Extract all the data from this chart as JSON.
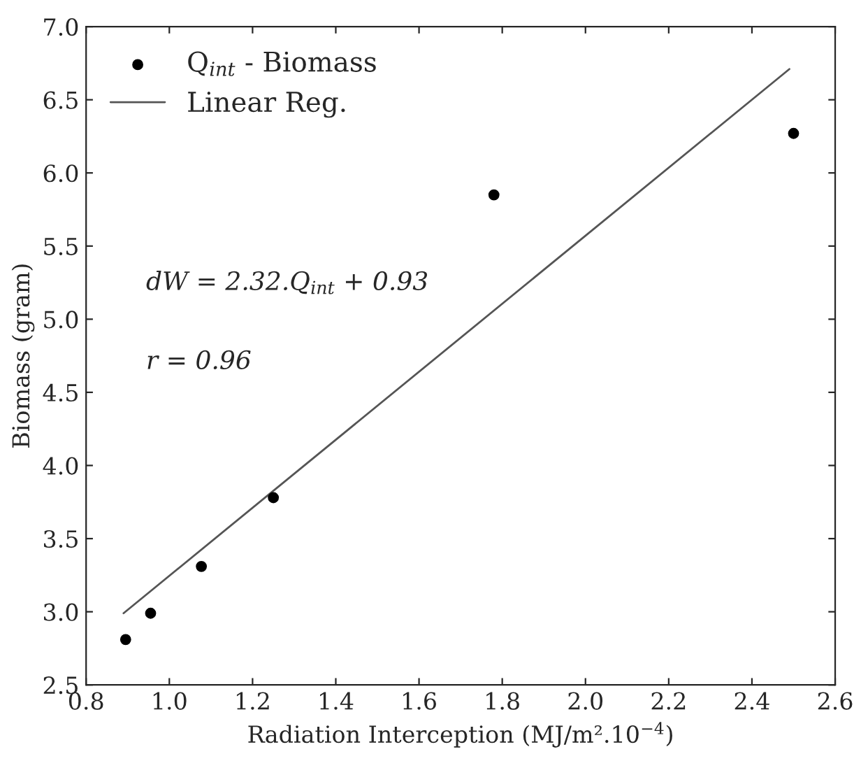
{
  "chart_data": {
    "type": "scatter",
    "xlabel": "Radiation Interception (MJ/m².10$^{−4}$)",
    "ylabel": "Biomass (gram)",
    "series": [
      {
        "name": "Q$_{int}$ - Biomass",
        "color": "#000000",
        "marker": "circle",
        "x": [
          0.895,
          0.955,
          1.077,
          1.25,
          1.78,
          2.5
        ],
        "values": [
          2.81,
          2.99,
          3.31,
          3.78,
          5.85,
          6.27
        ]
      },
      {
        "type": "line",
        "name": "Linear Reg.",
        "color": "#555555",
        "marker": "none",
        "x": [
          0.89,
          2.49
        ],
        "values": [
          2.99,
          6.71
        ]
      }
    ],
    "annotations": [
      "dW = 2.32.Q$_{int}$ + 0.93",
      "r = 0.96"
    ],
    "xlim": [
      0.8,
      2.6
    ],
    "xticks": [
      0.8,
      {
        "value": 1,
        "label": "1.0"
      },
      1.2,
      1.4,
      1.6,
      1.8,
      {
        "value": 2,
        "label": "2.0"
      },
      2.2,
      2.4,
      2.6
    ],
    "ylim": [
      2.5,
      7.0
    ],
    "yticks": [
      2.5,
      {
        "value": 3,
        "label": "3.0"
      },
      3.5,
      {
        "value": 4,
        "label": "4.0"
      },
      4.5,
      {
        "value": 5,
        "label": "5.0"
      },
      5.5,
      {
        "value": 6,
        "label": "6.0"
      },
      6.5,
      {
        "value": 7,
        "label": "7.0"
      }
    ],
    "grid": false,
    "legend": "top left"
  }
}
